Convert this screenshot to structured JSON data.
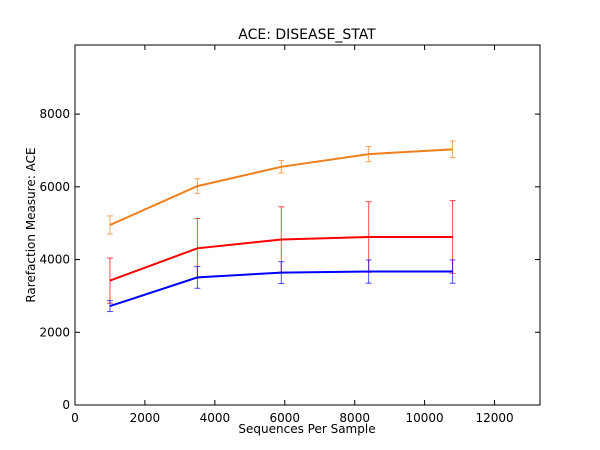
{
  "chart_data": {
    "type": "line",
    "title": "ACE: DISEASE_STAT",
    "xlabel": "Sequences Per Sample",
    "ylabel": "Rarefaction Measure: ACE",
    "xlim": [
      0,
      13300
    ],
    "ylim": [
      0,
      9900
    ],
    "xticks": [
      0,
      2000,
      4000,
      6000,
      8000,
      10000,
      12000
    ],
    "yticks": [
      0,
      2000,
      4000,
      6000,
      8000
    ],
    "grid": false,
    "x": [
      1000,
      3500,
      5900,
      8400,
      10800
    ],
    "series": [
      {
        "name": "orange",
        "color": "#ef7e1b",
        "values": [
          4950,
          6020,
          6550,
          6900,
          7030
        ],
        "error": [
          250,
          200,
          170,
          210,
          230
        ]
      },
      {
        "name": "red",
        "color": "#ff0000",
        "values": [
          3420,
          4310,
          4550,
          4620,
          4620
        ],
        "error": [
          620,
          820,
          900,
          970,
          1000
        ]
      },
      {
        "name": "blue",
        "color": "#0000ff",
        "values": [
          2720,
          3510,
          3640,
          3670,
          3670
        ],
        "error": [
          150,
          300,
          300,
          320,
          320
        ]
      }
    ]
  }
}
